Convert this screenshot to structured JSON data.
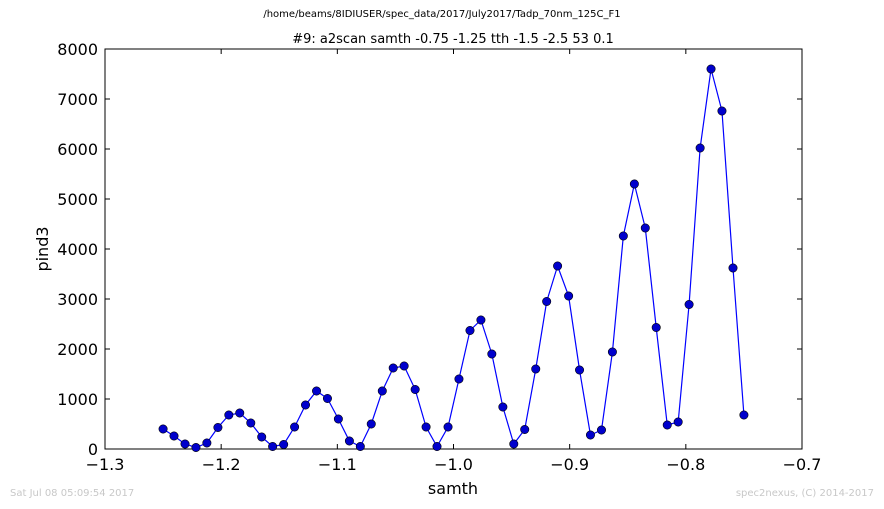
{
  "header": {
    "path": "/home/beams/8IDIUSER/spec_data/2017/July2017/Tadp_70nm_125C_F1"
  },
  "footer": {
    "timestamp": "Sat Jul 08 05:09:54 2017",
    "credit": "spec2nexus, (C) 2014-2017"
  },
  "colors": {
    "series": "#0000ff",
    "marker_fill": "#0000cc"
  },
  "chart_data": {
    "type": "line",
    "title": "#9: a2scan  samth -0.75 -1.25  tth -1.5 -2.5  53 0.1",
    "xlabel": "samth",
    "ylabel": "pind3",
    "xlim": [
      -1.3,
      -0.7
    ],
    "ylim": [
      0,
      8000
    ],
    "xticks": [
      -1.3,
      -1.2,
      -1.1,
      -1.0,
      -0.9,
      -0.8,
      -0.7
    ],
    "xtick_labels": [
      "−1.3",
      "−1.2",
      "−1.1",
      "−1.0",
      "−0.9",
      "−0.8",
      "−0.7"
    ],
    "yticks": [
      0,
      1000,
      2000,
      3000,
      4000,
      5000,
      6000,
      7000,
      8000
    ],
    "ytick_labels": [
      "0",
      "1000",
      "2000",
      "3000",
      "4000",
      "5000",
      "6000",
      "7000",
      "8000"
    ],
    "grid": false,
    "series": [
      {
        "x": [
          -1.25,
          -1.2406,
          -1.2311,
          -1.2217,
          -1.2123,
          -1.2028,
          -1.1934,
          -1.184,
          -1.1745,
          -1.1651,
          -1.1557,
          -1.1462,
          -1.1368,
          -1.1274,
          -1.1179,
          -1.1085,
          -1.0991,
          -1.0896,
          -1.0802,
          -1.0708,
          -1.0613,
          -1.0519,
          -1.0425,
          -1.033,
          -1.0236,
          -1.0142,
          -1.0047,
          -0.9953,
          -0.9858,
          -0.9764,
          -0.967,
          -0.9575,
          -0.9481,
          -0.9387,
          -0.9292,
          -0.9198,
          -0.9104,
          -0.9009,
          -0.8915,
          -0.8821,
          -0.8726,
          -0.8632,
          -0.8538,
          -0.8443,
          -0.8349,
          -0.8255,
          -0.816,
          -0.8066,
          -0.7972,
          -0.7877,
          -0.7783,
          -0.7689,
          -0.7594,
          -0.75
        ],
        "y": [
          400,
          260,
          100,
          30,
          120,
          430,
          680,
          720,
          520,
          240,
          50,
          90,
          440,
          880,
          1160,
          1010,
          600,
          160,
          50,
          500,
          1160,
          1620,
          1660,
          1190,
          440,
          50,
          440,
          1400,
          2370,
          2580,
          1900,
          840,
          100,
          390,
          1600,
          2950,
          3660,
          3060,
          1580,
          280,
          380,
          1940,
          4260,
          5300,
          4420,
          2430,
          480,
          540,
          2890,
          6020,
          7600,
          6760,
          3620,
          680
        ]
      }
    ]
  }
}
